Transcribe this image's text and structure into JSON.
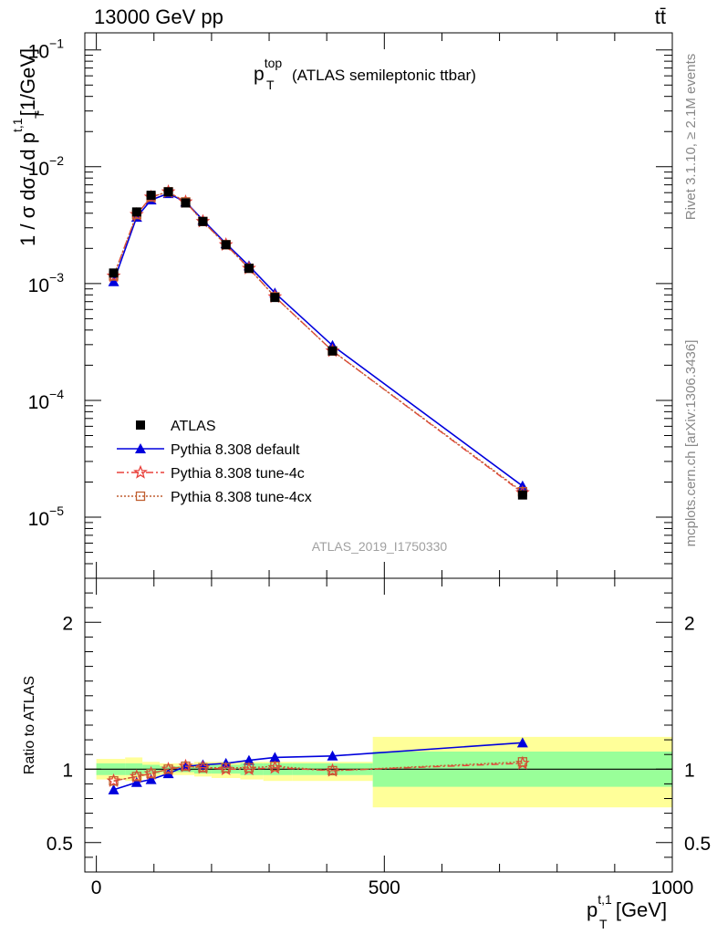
{
  "header": {
    "left": "13000 GeV pp",
    "right": "tt̄"
  },
  "side_labels": {
    "rivet": "Rivet 3.1.10, ≥ 2.1M events",
    "mcplots": "mcplots.cern.ch [arXiv:1306.3436]"
  },
  "chart_data": [
    {
      "type": "line",
      "panel": "main",
      "title_main": "p",
      "title_sup": "top",
      "title_sub": "T",
      "title_rest": "(ATLAS semileptonic ttbar)",
      "ylabel_main": "1 / σ dσ / d p",
      "ylabel_sup": "t,1",
      "ylabel_sub": "T",
      "ylabel_unit": "[1/GeV]",
      "yscale": "log",
      "ylim": [
        3e-06,
        0.14
      ],
      "xlim": [
        -20,
        1000
      ],
      "yticks": [
        {
          "value": 1e-05,
          "base": "10",
          "exp": "−5"
        },
        {
          "value": 0.0001,
          "base": "10",
          "exp": "−4"
        },
        {
          "value": 0.001,
          "base": "10",
          "exp": "−3"
        },
        {
          "value": 0.01,
          "base": "10",
          "exp": "−2"
        },
        {
          "value": 0.1,
          "base": "10",
          "exp": "−1"
        }
      ],
      "watermark": "ATLAS_2019_I1750330",
      "legend_position": "center-left",
      "x": [
        30,
        70,
        95,
        125,
        155,
        185,
        225,
        265,
        310,
        410,
        740
      ],
      "series": [
        {
          "name": "ATLAS",
          "marker": "square",
          "color": "#000000",
          "values": [
            0.00123,
            0.0041,
            0.0057,
            0.0061,
            0.0049,
            0.0034,
            0.00215,
            0.00135,
            0.00076,
            0.000265,
            1.55e-05
          ]
        },
        {
          "name": "Pythia 8.308 default",
          "marker": "triangle",
          "color": "#0000dd",
          "values": [
            0.00104,
            0.0037,
            0.0052,
            0.0059,
            0.005,
            0.0035,
            0.0022,
            0.00142,
            0.00083,
            0.000295,
            1.85e-05
          ]
        },
        {
          "name": "Pythia 8.308 tune-4c",
          "marker": "star",
          "color": "#e8403b",
          "values": [
            0.00116,
            0.0039,
            0.0055,
            0.0061,
            0.005,
            0.0034,
            0.00215,
            0.00135,
            0.00077,
            0.000265,
            1.62e-05
          ]
        },
        {
          "name": "Pythia 8.308 tune-4cx",
          "marker": "open-square",
          "color": "#c05f30",
          "values": [
            0.00116,
            0.0039,
            0.0055,
            0.0061,
            0.005,
            0.0034,
            0.00215,
            0.00135,
            0.00077,
            0.000265,
            1.65e-05
          ]
        }
      ]
    },
    {
      "type": "line",
      "panel": "ratio",
      "ylabel": "Ratio to ATLAS",
      "xlabel_main": "p",
      "xlabel_sup": "t,1",
      "xlabel_sub": "T",
      "xlabel_unit": "[GeV]",
      "ylim": [
        0.3,
        2.3
      ],
      "xlim": [
        -20,
        1000
      ],
      "yticks": [
        {
          "value": 0.5,
          "label": "0.5"
        },
        {
          "value": 1,
          "label": "1"
        },
        {
          "value": 2,
          "label": "2"
        }
      ],
      "xticks": [
        {
          "value": 0,
          "label": "0"
        },
        {
          "value": 500,
          "label": "500"
        },
        {
          "value": 1000,
          "label": "1000"
        }
      ],
      "bands": [
        {
          "x0": 0,
          "x1": 50,
          "g_lo": 0.96,
          "g_hi": 1.04,
          "y_lo": 0.93,
          "y_hi": 1.07
        },
        {
          "x0": 50,
          "x1": 80,
          "g_lo": 0.96,
          "g_hi": 1.04,
          "y_lo": 0.92,
          "y_hi": 1.08
        },
        {
          "x0": 80,
          "x1": 110,
          "g_lo": 0.97,
          "g_hi": 1.03,
          "y_lo": 0.95,
          "y_hi": 1.05
        },
        {
          "x0": 110,
          "x1": 140,
          "g_lo": 0.98,
          "g_hi": 1.02,
          "y_lo": 0.96,
          "y_hi": 1.04
        },
        {
          "x0": 140,
          "x1": 170,
          "g_lo": 0.98,
          "g_hi": 1.02,
          "y_lo": 0.96,
          "y_hi": 1.04
        },
        {
          "x0": 170,
          "x1": 200,
          "g_lo": 0.97,
          "g_hi": 1.03,
          "y_lo": 0.95,
          "y_hi": 1.05
        },
        {
          "x0": 200,
          "x1": 250,
          "g_lo": 0.97,
          "g_hi": 1.03,
          "y_lo": 0.94,
          "y_hi": 1.05
        },
        {
          "x0": 250,
          "x1": 290,
          "g_lo": 0.96,
          "g_hi": 1.04,
          "y_lo": 0.93,
          "y_hi": 1.05
        },
        {
          "x0": 290,
          "x1": 340,
          "g_lo": 0.96,
          "g_hi": 1.04,
          "y_lo": 0.92,
          "y_hi": 1.05
        },
        {
          "x0": 340,
          "x1": 480,
          "g_lo": 0.96,
          "g_hi": 1.04,
          "y_lo": 0.92,
          "y_hi": 1.05
        },
        {
          "x0": 480,
          "x1": 1000,
          "g_lo": 0.88,
          "g_hi": 1.12,
          "y_lo": 0.74,
          "y_hi": 1.22
        }
      ],
      "x": [
        30,
        70,
        95,
        125,
        155,
        185,
        225,
        265,
        310,
        410,
        740
      ],
      "series": [
        {
          "name": "Pythia 8.308 default",
          "marker": "triangle",
          "color": "#0000dd",
          "values": [
            0.86,
            0.91,
            0.93,
            0.97,
            1.02,
            1.03,
            1.04,
            1.06,
            1.08,
            1.09,
            1.18
          ]
        },
        {
          "name": "Pythia 8.308 tune-4c",
          "marker": "star",
          "color": "#e8403b",
          "values": [
            0.92,
            0.95,
            0.97,
            1.0,
            1.02,
            1.01,
            1.0,
            1.0,
            1.01,
            0.99,
            1.04
          ]
        },
        {
          "name": "Pythia 8.308 tune-4cx",
          "marker": "open-square",
          "color": "#c05f30",
          "values": [
            0.92,
            0.95,
            0.97,
            1.0,
            1.02,
            1.01,
            1.01,
            1.01,
            1.02,
            0.99,
            1.05
          ]
        }
      ]
    }
  ]
}
